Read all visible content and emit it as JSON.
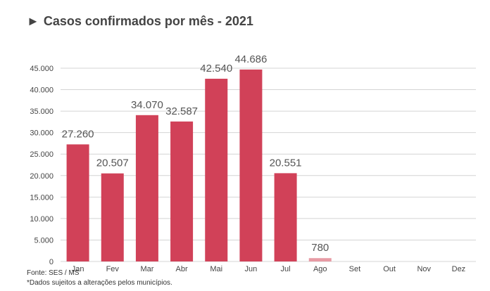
{
  "title_marker": "►",
  "title": "Casos confirmados por mês - 2021",
  "footer": {
    "source": "Fonte: SES / MS",
    "note": "*Dados sujeitos a alterações pelos municípios."
  },
  "chart_data": {
    "type": "bar",
    "title": "Casos confirmados por mês - 2021",
    "categories": [
      "Jan",
      "Fev",
      "Mar",
      "Abr",
      "Mai",
      "Jun",
      "Jul",
      "Ago",
      "Set",
      "Out",
      "Nov",
      "Dez"
    ],
    "values": [
      27260,
      20507,
      34070,
      32587,
      42540,
      44686,
      20551,
      780,
      null,
      null,
      null,
      null
    ],
    "data_labels": [
      "27.260",
      "20.507",
      "34.070",
      "32.587",
      "42.540",
      "44.686",
      "20.551",
      "780",
      "",
      "",
      "",
      ""
    ],
    "yticks": [
      0,
      5000,
      10000,
      15000,
      20000,
      25000,
      30000,
      35000,
      40000,
      45000
    ],
    "ytick_labels": [
      "0",
      "5.000",
      "10.000",
      "15.000",
      "20.000",
      "25.000",
      "30.000",
      "35.000",
      "40.000",
      "45.000"
    ],
    "ylim": [
      0,
      47500
    ],
    "grid": true,
    "colors": {
      "bar": "#d14158",
      "bar_last": "#e79aa4",
      "grid": "#d4d4d4",
      "axis_text": "#444444",
      "label_text": "#555555"
    }
  }
}
